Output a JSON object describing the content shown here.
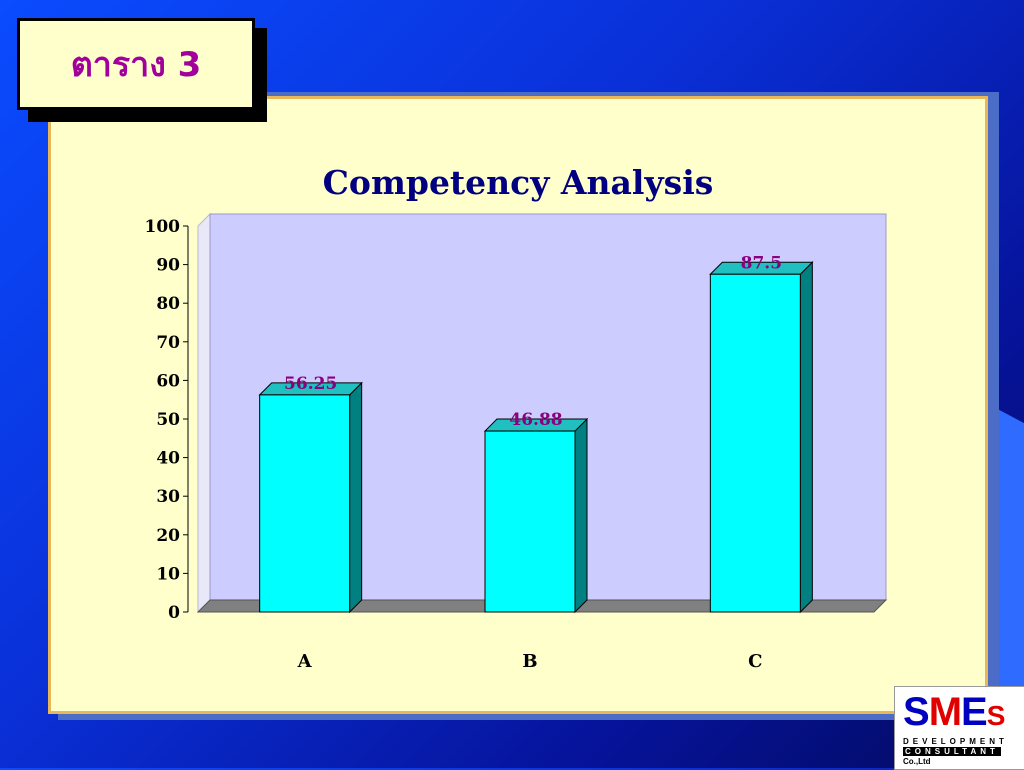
{
  "slide": {
    "title": "ตาราง 3"
  },
  "logo": {
    "main_s": "S",
    "main_m": "M",
    "main_e": "E",
    "main_s2": "S",
    "line1": "DEVELOPMENT",
    "line2": "CONSULTANT",
    "line3": "Co.,Ltd"
  },
  "colors": {
    "bar_face": "#00ffff",
    "bar_side": "#008080",
    "bar_top": "#20c0c0",
    "plot_bg": "#ccccff",
    "floor": "#808080",
    "title": "#000080",
    "data_label": "#8b007f",
    "slide_title": "#a1009c",
    "logo_red": "#e00000",
    "logo_blue": "#0000c0"
  },
  "chart_data": {
    "type": "bar",
    "title": "Competency Analysis",
    "categories": [
      "A",
      "B",
      "C"
    ],
    "values": [
      56.25,
      46.88,
      87.5
    ],
    "value_labels": [
      "56.25",
      "46.88",
      "87.5"
    ],
    "ylim": [
      0,
      100
    ],
    "yticks": [
      0,
      10,
      20,
      30,
      40,
      50,
      60,
      70,
      80,
      90,
      100
    ],
    "xlabel": "",
    "ylabel": "",
    "style": "3d-column",
    "grid": false,
    "legend": "none"
  }
}
